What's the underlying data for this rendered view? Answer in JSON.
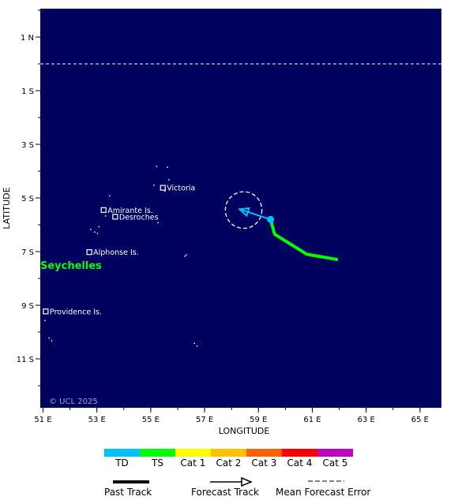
{
  "map": {
    "xlabel": "LONGITUDE",
    "ylabel": "LATITUDE",
    "x_ticks": [
      "51 E",
      "53 E",
      "55 E",
      "57 E",
      "59 E",
      "61 E",
      "63 E",
      "65 E"
    ],
    "y_ticks": [
      "1 N",
      "1 S",
      "3 S",
      "5 S",
      "7 S",
      "9 S",
      "11 S"
    ],
    "copyright": "© UCL 2025",
    "country_label": "Seychelles",
    "places": [
      {
        "name": "Victoria",
        "lon": 55.45,
        "lat": -4.62
      },
      {
        "name": "Amirante Is.",
        "lon": 53.25,
        "lat": -5.45
      },
      {
        "name": "Desroches",
        "lon": 53.68,
        "lat": -5.7
      },
      {
        "name": "Alphonse Is.",
        "lon": 52.72,
        "lat": -7.02
      },
      {
        "name": "Providence Is.",
        "lon": 51.1,
        "lat": -9.23
      }
    ],
    "equator_lat": 0,
    "past_track": [
      {
        "lon": 61.95,
        "lat": -7.3
      },
      {
        "lon": 60.8,
        "lat": -7.1
      },
      {
        "lon": 59.6,
        "lat": -6.35
      },
      {
        "lon": 59.45,
        "lat": -5.8
      }
    ],
    "current_position": {
      "lon": 59.45,
      "lat": -5.8
    },
    "forecast_track": [
      {
        "lon": 59.45,
        "lat": -5.8
      },
      {
        "lon": 58.3,
        "lat": -5.42
      }
    ],
    "error_circle": {
      "lon": 58.45,
      "lat": -5.45,
      "radius_deg": 0.68
    }
  },
  "legend": {
    "categories": [
      {
        "label": "TD",
        "color": "#00c0ff"
      },
      {
        "label": "TS",
        "color": "#00ff00"
      },
      {
        "label": "Cat 1",
        "color": "#ffff00"
      },
      {
        "label": "Cat 2",
        "color": "#ffc000"
      },
      {
        "label": "Cat 3",
        "color": "#ff6000"
      },
      {
        "label": "Cat 4",
        "color": "#ff0000"
      },
      {
        "label": "Cat 5",
        "color": "#c000c0"
      }
    ],
    "past_track_label": "Past Track",
    "forecast_track_label": "Forecast Track",
    "error_label": "Mean Forecast Error"
  },
  "colors": {
    "ocean": "#00005f",
    "td": "#00c0ff",
    "ts": "#00ff00"
  }
}
